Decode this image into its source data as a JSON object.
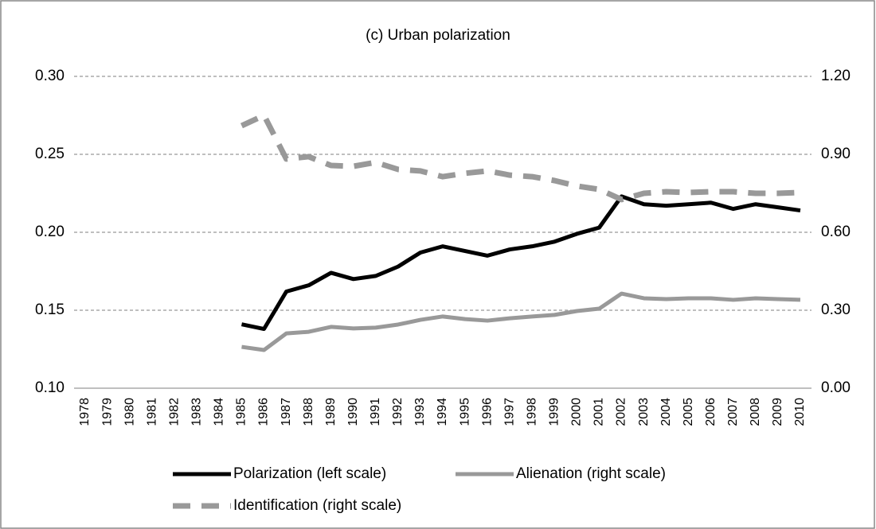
{
  "chart_data": {
    "type": "line",
    "title": "(c) Urban polarization",
    "categories": [
      "1978",
      "1979",
      "1980",
      "1981",
      "1982",
      "1983",
      "1984",
      "1985",
      "1986",
      "1987",
      "1988",
      "1989",
      "1990",
      "1991",
      "1992",
      "1993",
      "1994",
      "1995",
      "1996",
      "1997",
      "1998",
      "1999",
      "2000",
      "2001",
      "2002",
      "2003",
      "2004",
      "2005",
      "2006",
      "2007",
      "2008",
      "2009",
      "2010"
    ],
    "ylim": [
      0.1,
      0.3
    ],
    "yticks": [
      {
        "value": 0.1,
        "label": "0.10"
      },
      {
        "value": 0.15,
        "label": "0.15"
      },
      {
        "value": 0.2,
        "label": "0.20"
      },
      {
        "value": 0.25,
        "label": "0.25"
      },
      {
        "value": 0.3,
        "label": "0.30"
      }
    ],
    "y2lim": [
      0,
      1.2
    ],
    "y2ticks": [
      {
        "value": 0,
        "label": "0.00"
      },
      {
        "value": 0.3,
        "label": "0.30"
      },
      {
        "value": 0.6,
        "label": "0.60"
      },
      {
        "value": 0.9,
        "label": "0.90"
      },
      {
        "value": 1.2,
        "label": "1.20"
      }
    ],
    "grid": true,
    "legend": "bottom",
    "series": [
      {
        "name": "Polarization (left scale)",
        "color": "#000000",
        "axis": "y",
        "values": [
          null,
          null,
          null,
          null,
          null,
          null,
          null,
          0.141,
          0.138,
          0.162,
          0.166,
          0.174,
          0.17,
          0.172,
          0.178,
          0.187,
          0.191,
          0.188,
          0.185,
          0.189,
          0.191,
          0.194,
          0.199,
          0.203,
          0.223,
          0.218,
          0.217,
          0.218,
          0.219,
          0.215,
          0.218,
          0.216,
          0.214
        ]
      },
      {
        "name": "Alienation (right scale)",
        "color": "#999999",
        "axis": "y2",
        "values": [
          null,
          null,
          null,
          null,
          null,
          null,
          null,
          0.159,
          0.147,
          0.211,
          0.217,
          0.236,
          0.23,
          0.233,
          0.245,
          0.263,
          0.276,
          0.266,
          0.26,
          0.269,
          0.276,
          0.282,
          0.297,
          0.306,
          0.364,
          0.346,
          0.343,
          0.346,
          0.346,
          0.34,
          0.346,
          0.343,
          0.34
        ]
      },
      {
        "name": "Identification (right scale)",
        "color": "#999999",
        "axis": "y2",
        "dashed": true,
        "values": [
          null,
          null,
          null,
          null,
          null,
          null,
          null,
          1.01,
          1.05,
          0.882,
          0.891,
          0.857,
          0.854,
          0.869,
          0.842,
          0.836,
          0.814,
          0.827,
          0.836,
          0.82,
          0.814,
          0.799,
          0.778,
          0.765,
          0.726,
          0.75,
          0.756,
          0.753,
          0.756,
          0.756,
          0.75,
          0.75,
          0.753
        ]
      }
    ]
  }
}
